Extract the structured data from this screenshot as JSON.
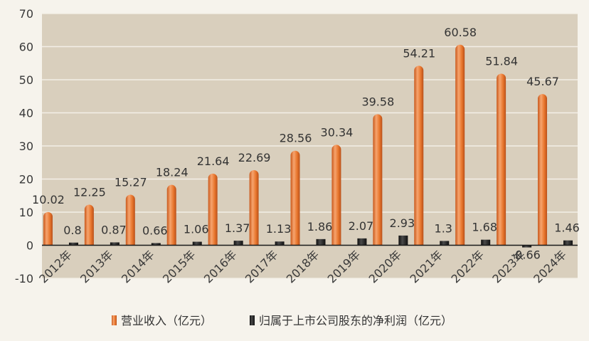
{
  "colors": {
    "background": "#f6f3ec",
    "plot_area": "#d9cfbd",
    "gridline": "#f3efe7",
    "revenue": "#e8762d",
    "revenue_highlight": "#f6a46e",
    "profit": "#1c1c1c",
    "profit_highlight": "#4a4a4a"
  },
  "chart_data": {
    "type": "bar",
    "title": "",
    "xlabel": "",
    "ylabel": "",
    "ylim": [
      -10,
      70
    ],
    "yticks": [
      -10,
      0,
      10,
      20,
      30,
      40,
      50,
      60,
      70
    ],
    "grid": true,
    "legend_position": "bottom-center",
    "categories": [
      "2012年",
      "2013年",
      "2014年",
      "2015年",
      "2016年",
      "2017年",
      "2018年",
      "2019年",
      "2020年",
      "2021年",
      "2022年",
      "2023年",
      "2024年"
    ],
    "series": [
      {
        "name": "营业收入（亿元）",
        "values": [
          10.02,
          12.25,
          15.27,
          18.24,
          21.64,
          22.69,
          28.56,
          30.34,
          39.58,
          54.21,
          60.58,
          51.84,
          45.67
        ],
        "labels": [
          "10.02",
          "12.25",
          "15.27",
          "18.24",
          "21.64",
          "22.69",
          "28.56",
          "30.34",
          "39.58",
          "54.21",
          "60.58",
          "51.84",
          "45.67"
        ]
      },
      {
        "name": "归属于上市公司股东的净利润（亿元）",
        "values": [
          0.8,
          0.87,
          0.66,
          1.06,
          1.37,
          1.13,
          1.86,
          2.07,
          2.93,
          1.3,
          1.68,
          -0.66,
          1.46
        ],
        "labels": [
          "0.8",
          "0.87",
          "0.66",
          "1.06",
          "1.37",
          "1.13",
          "1.86",
          "2.07",
          "2.93",
          "1.3",
          "1.68",
          "-0.66",
          "1.46"
        ]
      }
    ]
  }
}
